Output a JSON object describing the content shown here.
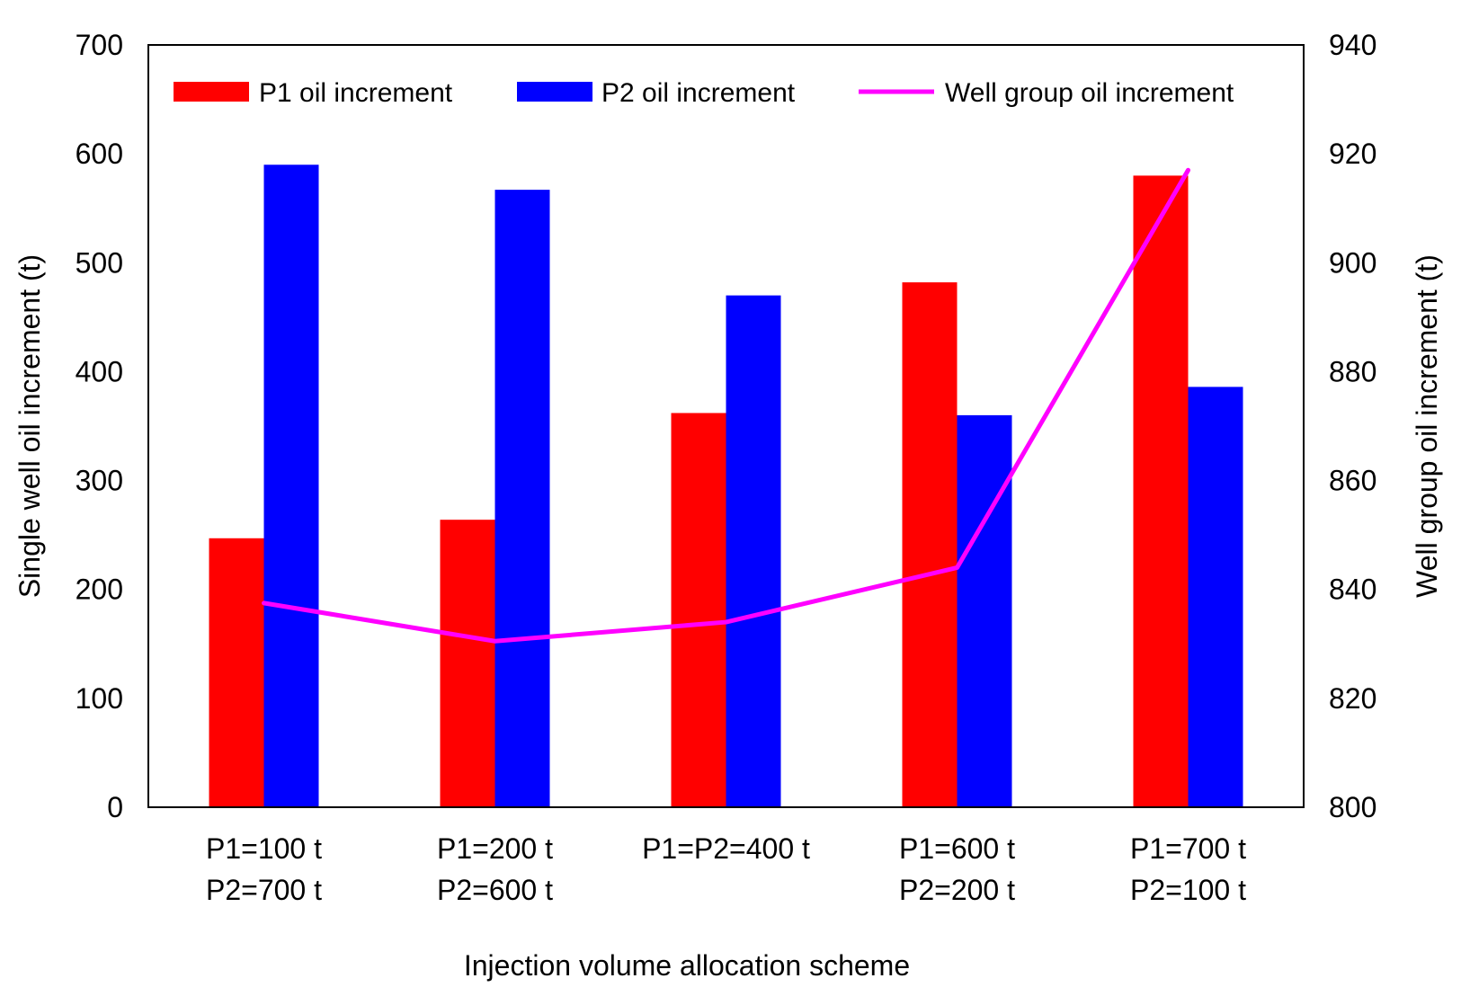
{
  "chart_data": {
    "type": "bar",
    "title": "",
    "xlabel": "Injection volume allocation scheme",
    "ylabel": "Single well oil increment (t)",
    "y2label": "Well group oil increment (t)",
    "categories": [
      [
        "P1=100 t",
        "P2=700 t"
      ],
      [
        "P1=200 t",
        "P2=600 t"
      ],
      [
        "P1=P2=400 t"
      ],
      [
        "P1=600 t",
        "P2=200 t"
      ],
      [
        "P1=700 t",
        "P2=100 t"
      ]
    ],
    "ylim": [
      0,
      700
    ],
    "yticks": [
      0,
      100,
      200,
      300,
      400,
      500,
      600,
      700
    ],
    "y2lim": [
      800,
      940
    ],
    "y2ticks": [
      800,
      820,
      840,
      860,
      880,
      900,
      920,
      940
    ],
    "grid": false,
    "legend_position": "top",
    "series": [
      {
        "name": "P1 oil increment",
        "type": "bar",
        "axis": "left",
        "color": "#ff0000",
        "values": [
          247,
          264,
          362,
          482,
          580
        ]
      },
      {
        "name": "P2 oil increment",
        "type": "bar",
        "axis": "left",
        "color": "#0000ff",
        "values": [
          590,
          567,
          470,
          360,
          386
        ]
      },
      {
        "name": "Well group oil increment",
        "type": "line",
        "axis": "right",
        "color": "#ff00ff",
        "values": [
          837.5,
          830.5,
          834,
          844,
          917
        ]
      }
    ]
  }
}
